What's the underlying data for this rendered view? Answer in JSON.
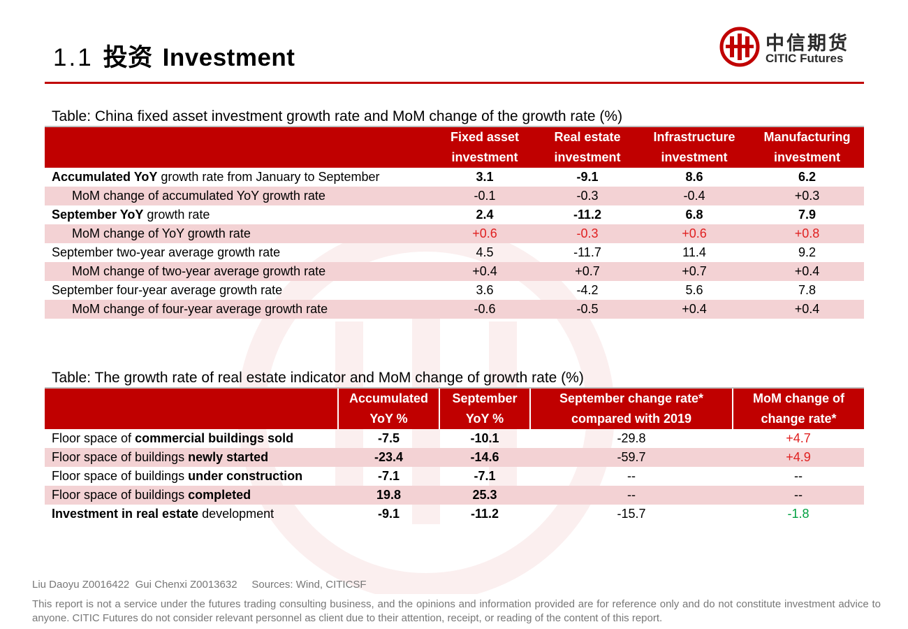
{
  "header": {
    "section_number": "1.1",
    "section_cn": "投资",
    "section_en": "Investment",
    "logo_cn": "中信期货",
    "logo_en": "CITIC Futures",
    "brand_color": "#c00000"
  },
  "table1": {
    "caption": "Table: China fixed asset investment growth rate and MoM change of the growth rate (%)",
    "headers": [
      [
        "Fixed asset",
        "investment"
      ],
      [
        "Real estate",
        "investment"
      ],
      [
        "Infrastructure",
        "investment"
      ],
      [
        "Manufacturing",
        "investment"
      ]
    ],
    "rows": [
      {
        "label_bold": "Accumulated YoY",
        "label_rest": " growth rate from January to September",
        "values": [
          "3.1",
          "-9.1",
          "8.6",
          "6.2"
        ]
      },
      {
        "label_bold": "",
        "label_rest": "MoM change of accumulated YoY growth rate",
        "values": [
          "-0.1",
          "-0.3",
          "-0.4",
          "+0.3"
        ]
      },
      {
        "label_bold": "September YoY",
        "label_rest": " growth rate",
        "values": [
          "2.4",
          "-11.2",
          "6.8",
          "7.9"
        ]
      },
      {
        "label_bold": "",
        "label_rest": "MoM change of YoY growth rate",
        "values": [
          "+0.6",
          "-0.3",
          "+0.6",
          "+0.8"
        ]
      },
      {
        "label_bold": "",
        "label_rest": "September two-year average growth rate",
        "values": [
          "4.5",
          "-11.7",
          "11.4",
          "9.2"
        ]
      },
      {
        "label_bold": "",
        "label_rest": "MoM change of two-year average growth rate",
        "values": [
          "+0.4",
          "+0.7",
          "+0.7",
          "+0.4"
        ]
      },
      {
        "label_bold": "",
        "label_rest": "September four-year average growth rate",
        "values": [
          "3.6",
          "-4.2",
          "5.6",
          "7.8"
        ]
      },
      {
        "label_bold": "",
        "label_rest": "MoM change of four-year average growth rate",
        "values": [
          "-0.6",
          "-0.5",
          "+0.4",
          "+0.4"
        ]
      }
    ]
  },
  "table2": {
    "caption": "Table: The growth rate of real estate indicator and MoM change of growth rate (%)",
    "headers": [
      [
        "Accumulated",
        "YoY %"
      ],
      [
        "September",
        "YoY %"
      ],
      [
        "September change rate*",
        "compared with 2019"
      ],
      [
        "MoM change of",
        "change rate*"
      ]
    ],
    "rows": [
      {
        "label_pre": "Floor space of ",
        "label_bold": "commercial buildings sold",
        "label_post": "",
        "values": [
          "-7.5",
          "-10.1",
          "-29.8",
          "+4.7"
        ]
      },
      {
        "label_pre": "Floor space of buildings ",
        "label_bold": "newly started",
        "label_post": "",
        "values": [
          "-23.4",
          "-14.6",
          "-59.7",
          "+4.9"
        ]
      },
      {
        "label_pre": "Floor space of buildings ",
        "label_bold": "under construction",
        "label_post": "",
        "values": [
          "-7.1",
          "-7.1",
          "--",
          "--"
        ]
      },
      {
        "label_pre": "Floor space of buildings ",
        "label_bold": "completed",
        "label_post": "",
        "values": [
          "19.8",
          "25.3",
          "--",
          "--"
        ]
      },
      {
        "label_pre": "",
        "label_bold": "Investment in real estate",
        "label_post": " development",
        "values": [
          "-9.1",
          "-11.2",
          "-15.7",
          "-1.8"
        ]
      }
    ]
  },
  "footer": {
    "authors": "Liu Daoyu Z0016422  Gui Chenxi Z0013632     Sources: Wind, CITICSF",
    "disclaimer": "This report is not a service under the futures trading consulting business, and the opinions and information provided are for reference only and do not constitute investment advice to anyone. CITIC Futures do not consider relevant personnel as client due to their attention, receipt, or reading of the content of this report."
  }
}
